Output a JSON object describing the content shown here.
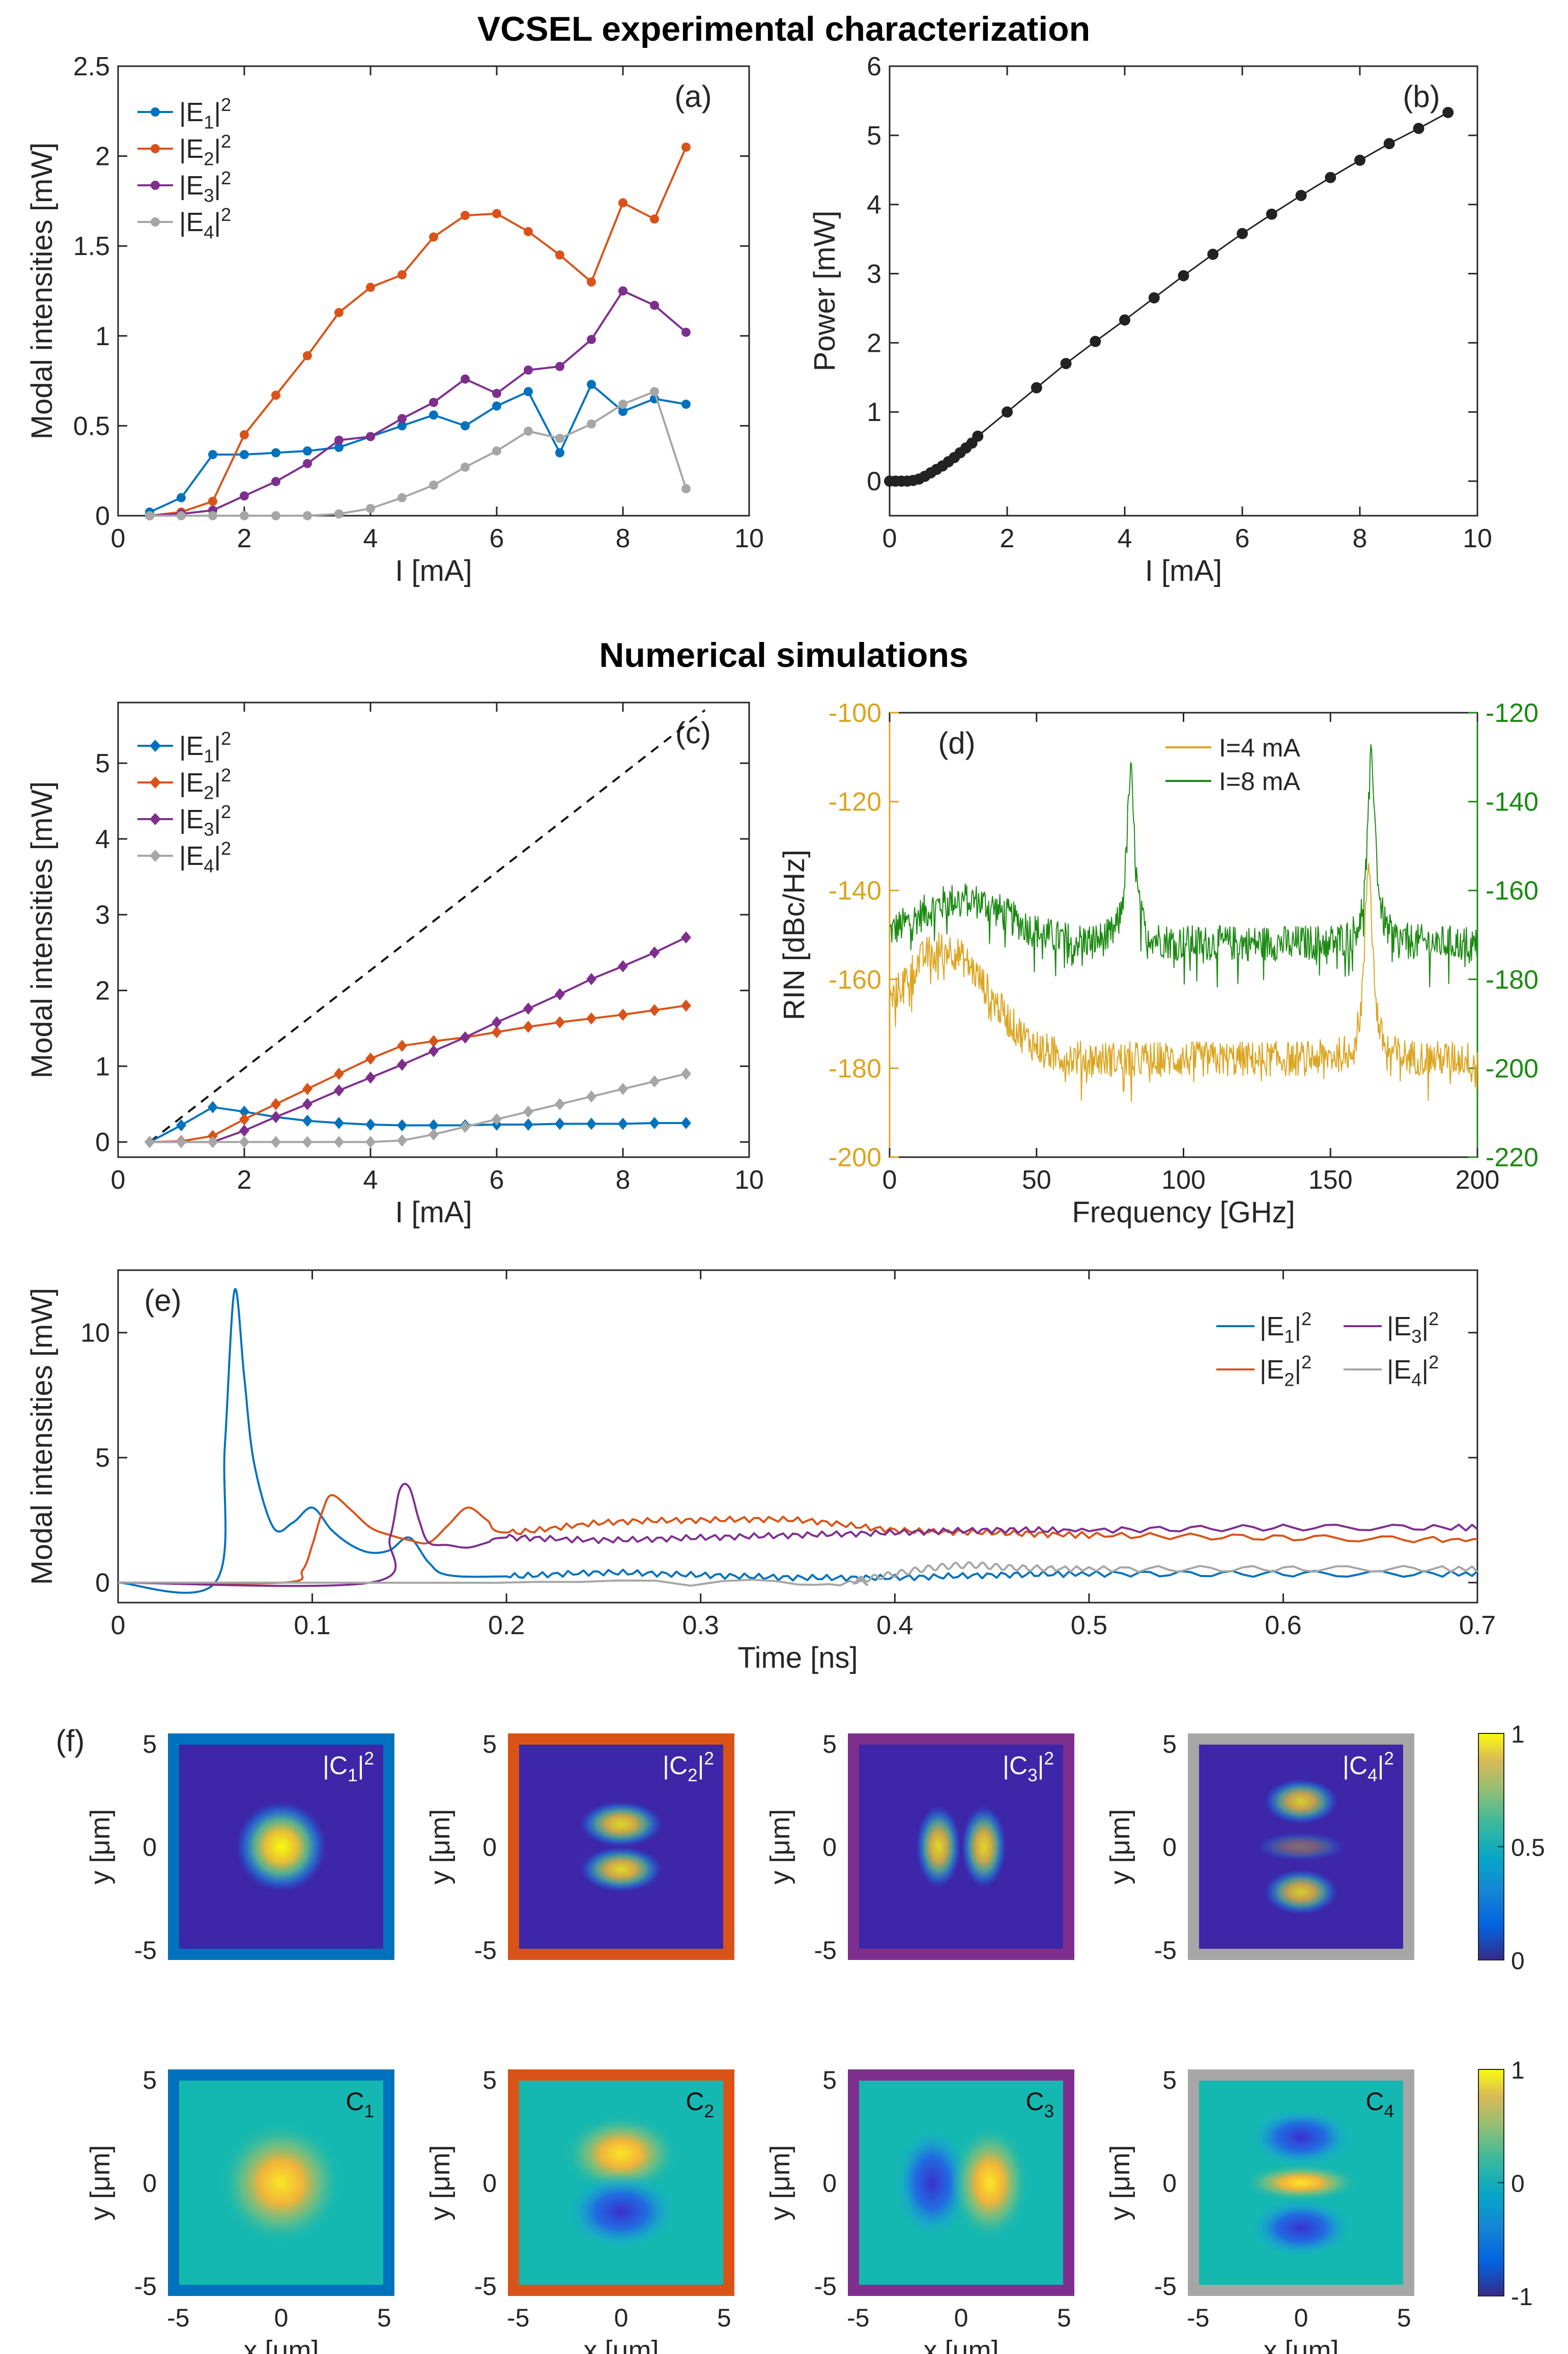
{
  "headings": {
    "experimental": "VCSEL experimental characterization",
    "simulations": "Numerical simulations"
  },
  "colors": {
    "blue": "#0072bd",
    "orange": "#d95319",
    "purple": "#7e2f8e",
    "gray": "#a6a6a6",
    "black": "#222222",
    "gold": "#dba520",
    "green": "#1b8a12"
  },
  "colorbars": [
    {
      "ticks": [
        "1",
        "0.5",
        "0"
      ]
    },
    {
      "ticks": [
        "1",
        "0",
        "-1"
      ]
    }
  ],
  "chart_data": [
    {
      "id": "a",
      "type": "line",
      "panel_label": "(a)",
      "xlabel": "I [mA]",
      "ylabel": "Modal intensities [mW]",
      "xlim": [
        0,
        10
      ],
      "ylim": [
        0,
        2.5
      ],
      "xticks": [
        "0",
        "2",
        "4",
        "6",
        "8",
        "10"
      ],
      "yticks": [
        "0",
        "0.5",
        "1",
        "1.5",
        "2",
        "2.5"
      ],
      "x": [
        0.5,
        1,
        1.5,
        2,
        2.5,
        3,
        3.5,
        4,
        4.5,
        5,
        5.5,
        6,
        6.5,
        7,
        7.5,
        8,
        8.5,
        9
      ],
      "series": [
        {
          "name": "|E1|2",
          "name_base": "|E",
          "name_sub": "1",
          "name_sup": "2",
          "color": "#0072bd",
          "values": [
            0.02,
            0.1,
            0.34,
            0.34,
            0.35,
            0.36,
            0.38,
            0.44,
            0.5,
            0.56,
            0.5,
            0.61,
            0.69,
            0.35,
            0.73,
            0.58,
            0.65,
            0.62
          ]
        },
        {
          "name": "|E2|2",
          "name_base": "|E",
          "name_sub": "2",
          "name_sup": "2",
          "color": "#d95319",
          "values": [
            0.0,
            0.02,
            0.08,
            0.45,
            0.67,
            0.89,
            1.13,
            1.27,
            1.34,
            1.55,
            1.67,
            1.68,
            1.58,
            1.45,
            1.3,
            1.74,
            1.65,
            2.05
          ]
        },
        {
          "name": "|E3|2",
          "name_base": "|E",
          "name_sub": "3",
          "name_sup": "2",
          "color": "#7e2f8e",
          "values": [
            0.0,
            0.01,
            0.03,
            0.11,
            0.19,
            0.29,
            0.42,
            0.44,
            0.54,
            0.63,
            0.76,
            0.68,
            0.81,
            0.83,
            0.98,
            1.25,
            1.17,
            1.02
          ]
        },
        {
          "name": "|E4|2",
          "name_base": "|E",
          "name_sub": "4",
          "name_sup": "2",
          "color": "#a6a6a6",
          "values": [
            0.0,
            0.0,
            0.0,
            0.0,
            0.0,
            0.0,
            0.01,
            0.04,
            0.1,
            0.17,
            0.27,
            0.36,
            0.47,
            0.43,
            0.51,
            0.62,
            0.69,
            0.15
          ]
        }
      ]
    },
    {
      "id": "b",
      "type": "line",
      "panel_label": "(b)",
      "xlabel": "I [mA]",
      "ylabel": "Power [mW]",
      "xlim": [
        0,
        10
      ],
      "ylim": [
        -0.5,
        6
      ],
      "xticks": [
        "0",
        "2",
        "4",
        "6",
        "8",
        "10"
      ],
      "yticks": [
        "0",
        "1",
        "2",
        "3",
        "4",
        "5",
        "6"
      ],
      "x": [
        0,
        0.1,
        0.2,
        0.3,
        0.4,
        0.5,
        0.6,
        0.7,
        0.8,
        0.9,
        1.0,
        1.1,
        1.2,
        1.3,
        1.4,
        1.5,
        2,
        2.5,
        3,
        3.5,
        4,
        4.5,
        5,
        5.5,
        6,
        6.5,
        7,
        7.5,
        8,
        8.5,
        9,
        9.5
      ],
      "series": [
        {
          "name": "Power",
          "color": "#222222",
          "values": [
            0,
            0,
            0,
            0,
            0.01,
            0.03,
            0.07,
            0.12,
            0.17,
            0.22,
            0.28,
            0.34,
            0.41,
            0.48,
            0.55,
            0.65,
            1.0,
            1.35,
            1.7,
            2.02,
            2.33,
            2.65,
            2.97,
            3.28,
            3.58,
            3.86,
            4.13,
            4.39,
            4.64,
            4.88,
            5.1,
            5.33
          ]
        }
      ]
    },
    {
      "id": "c",
      "type": "line",
      "panel_label": "(c)",
      "xlabel": "I [mA]",
      "ylabel": "Modal intensities [mW]",
      "xlim": [
        0,
        10
      ],
      "ylim": [
        -0.2,
        5.8
      ],
      "xticks": [
        "0",
        "2",
        "4",
        "6",
        "8",
        "10"
      ],
      "yticks": [
        "0",
        "1",
        "2",
        "3",
        "4",
        "5"
      ],
      "x": [
        0.5,
        1,
        1.5,
        2,
        2.5,
        3,
        3.5,
        4,
        4.5,
        5,
        5.5,
        6,
        6.5,
        7,
        7.5,
        8,
        8.5,
        9
      ],
      "series": [
        {
          "name": "|E1|2",
          "name_base": "|E",
          "name_sub": "1",
          "name_sup": "2",
          "color": "#0072bd",
          "values": [
            0.0,
            0.22,
            0.46,
            0.4,
            0.33,
            0.28,
            0.25,
            0.23,
            0.22,
            0.22,
            0.22,
            0.23,
            0.23,
            0.24,
            0.24,
            0.24,
            0.25,
            0.25
          ]
        },
        {
          "name": "|E2|2",
          "name_base": "|E",
          "name_sub": "2",
          "name_sup": "2",
          "color": "#d95319",
          "values": [
            0.0,
            0.01,
            0.08,
            0.3,
            0.5,
            0.7,
            0.9,
            1.1,
            1.27,
            1.33,
            1.38,
            1.45,
            1.52,
            1.58,
            1.63,
            1.68,
            1.74,
            1.8
          ]
        },
        {
          "name": "|E3|2",
          "name_base": "|E",
          "name_sub": "3",
          "name_sup": "2",
          "color": "#7e2f8e",
          "values": [
            0.0,
            0.0,
            0.0,
            0.15,
            0.33,
            0.5,
            0.68,
            0.85,
            1.02,
            1.2,
            1.38,
            1.58,
            1.76,
            1.95,
            2.15,
            2.32,
            2.5,
            2.7
          ]
        },
        {
          "name": "|E4|2",
          "name_base": "|E",
          "name_sub": "4",
          "name_sup": "2",
          "color": "#a6a6a6",
          "values": [
            0.0,
            0.0,
            0.0,
            0.0,
            0.0,
            0.0,
            0.0,
            0.0,
            0.02,
            0.1,
            0.2,
            0.3,
            0.4,
            0.5,
            0.6,
            0.7,
            0.8,
            0.9
          ]
        }
      ],
      "reference_line": {
        "style": "dashed",
        "x": [
          0.5,
          9.3
        ],
        "y": [
          0,
          5.7
        ]
      }
    },
    {
      "id": "d",
      "type": "line",
      "panel_label": "(d)",
      "xlabel": "Frequency [GHz]",
      "ylabel": "RIN [dBc/Hz]",
      "xlim": [
        0,
        200
      ],
      "ylim": [
        -200,
        -100
      ],
      "xticks": [
        "0",
        "50",
        "100",
        "150",
        "200"
      ],
      "yticks": [
        "-200",
        "-180",
        "-160",
        "-140",
        "-120",
        "-100"
      ],
      "y2ticks": [
        "-220",
        "-200",
        "-180",
        "-160",
        "-140",
        "-120"
      ],
      "y2lim": [
        -220,
        -120
      ],
      "series": [
        {
          "name": "I=4 mA",
          "color": "#dba520",
          "axis": "left",
          "baseline_dB": -178,
          "bump_dB": -153,
          "bump_GHz": 18,
          "peak_GHz": 163,
          "peak_dB": -133,
          "noise_dB": 4
        },
        {
          "name": "I=8 mA",
          "color": "#1b8a12",
          "axis": "right",
          "baseline_dB": -172,
          "bump_dB": -162,
          "bump_GHz": 25,
          "peak_GHz": 82,
          "peak_dB": -134,
          "peak2_GHz": 164,
          "peak2_dB": -130,
          "noise_dB": 4
        }
      ]
    },
    {
      "id": "e",
      "type": "line",
      "panel_label": "(e)",
      "xlabel": "Time [ns]",
      "ylabel": "Modal intensities [mW]",
      "xlim": [
        0,
        0.7
      ],
      "ylim": [
        -0.8,
        12.5
      ],
      "xticks": [
        "0",
        "0.1",
        "0.2",
        "0.3",
        "0.4",
        "0.5",
        "0.6",
        "0.7"
      ],
      "yticks": [
        "0",
        "5",
        "10"
      ],
      "series": [
        {
          "name": "|E1|2",
          "name_base": "|E",
          "name_sub": "1",
          "name_sup": "2",
          "color": "#0072bd",
          "t": [
            0,
            0.05,
            0.055,
            0.06,
            0.065,
            0.07,
            0.08,
            0.09,
            0.1,
            0.11,
            0.12,
            0.13,
            0.14,
            0.15,
            0.16,
            0.17,
            0.2,
            0.25,
            0.3,
            0.35,
            0.4,
            0.45,
            0.5,
            0.6,
            0.7
          ],
          "values": [
            0,
            0,
            5.5,
            11.7,
            8.2,
            4.8,
            2.2,
            2.4,
            3.0,
            2.1,
            1.5,
            1.2,
            1.3,
            1.8,
            0.8,
            0.3,
            0.25,
            0.4,
            0.3,
            0.2,
            0.2,
            0.3,
            0.35,
            0.35,
            0.35
          ]
        },
        {
          "name": "|E2|2",
          "name_base": "|E",
          "name_sub": "2",
          "name_sup": "2",
          "color": "#d95319",
          "t": [
            0,
            0.085,
            0.095,
            0.1,
            0.105,
            0.11,
            0.12,
            0.13,
            0.14,
            0.15,
            0.16,
            0.17,
            0.18,
            0.19,
            0.2,
            0.25,
            0.3,
            0.35,
            0.4,
            0.45,
            0.5,
            0.6,
            0.7
          ],
          "values": [
            0,
            0,
            0.5,
            1.5,
            2.8,
            3.5,
            2.9,
            2.2,
            1.9,
            1.7,
            1.6,
            2.3,
            3.0,
            2.5,
            2.0,
            2.4,
            2.5,
            2.5,
            2.1,
            2.0,
            1.9,
            1.8,
            1.7
          ]
        },
        {
          "name": "|E3|2",
          "name_base": "|E",
          "name_sub": "3",
          "name_sup": "2",
          "color": "#7e2f8e",
          "t": [
            0,
            0.13,
            0.14,
            0.145,
            0.15,
            0.155,
            0.16,
            0.17,
            0.18,
            0.19,
            0.2,
            0.25,
            0.3,
            0.35,
            0.4,
            0.45,
            0.5,
            0.6,
            0.7
          ],
          "values": [
            0,
            0,
            1.8,
            3.7,
            3.8,
            2.5,
            1.6,
            1.5,
            1.4,
            1.6,
            1.8,
            1.7,
            1.8,
            1.9,
            2.0,
            2.1,
            2.1,
            2.2,
            2.2
          ]
        },
        {
          "name": "|E4|2",
          "name_base": "|E",
          "name_sub": "4",
          "name_sup": "2",
          "color": "#a6a6a6",
          "t": [
            0,
            0.35,
            0.38,
            0.4,
            0.42,
            0.44,
            0.46,
            0.5,
            0.6,
            0.7
          ],
          "values": [
            0,
            0,
            0.1,
            0.35,
            0.6,
            0.7,
            0.6,
            0.55,
            0.55,
            0.55
          ]
        }
      ]
    },
    {
      "id": "f",
      "type": "heatmap",
      "panel_label": "(f)",
      "xlabel": "x [μm]",
      "ylabel": "y [μm]",
      "xlim": [
        -5.5,
        5.5
      ],
      "ylim": [
        -5.5,
        5.5
      ],
      "ticks": [
        "-5",
        "0",
        "5"
      ],
      "maps": [
        {
          "row": "intensity",
          "label_base": "|C",
          "label_sub": "1",
          "label_sup": "2",
          "label_text": "|C1|2",
          "mode": 1,
          "frame_color": "#0072bd"
        },
        {
          "row": "intensity",
          "label_base": "|C",
          "label_sub": "2",
          "label_sup": "2",
          "label_text": "|C2|2",
          "mode": 2,
          "frame_color": "#d95319"
        },
        {
          "row": "intensity",
          "label_base": "|C",
          "label_sub": "3",
          "label_sup": "2",
          "label_text": "|C3|2",
          "mode": 3,
          "frame_color": "#7e2f8e"
        },
        {
          "row": "intensity",
          "label_base": "|C",
          "label_sub": "4",
          "label_sup": "2",
          "label_text": "|C4|2",
          "mode": 4,
          "frame_color": "#a6a6a6"
        },
        {
          "row": "field",
          "label_base": "C",
          "label_sub": "1",
          "label_sup": "",
          "label_text": "C1",
          "mode": 1,
          "frame_color": "#0072bd"
        },
        {
          "row": "field",
          "label_base": "C",
          "label_sub": "2",
          "label_sup": "",
          "label_text": "C2",
          "mode": 2,
          "frame_color": "#d95319"
        },
        {
          "row": "field",
          "label_base": "C",
          "label_sub": "3",
          "label_sup": "",
          "label_text": "C3",
          "mode": 3,
          "frame_color": "#7e2f8e"
        },
        {
          "row": "field",
          "label_base": "C",
          "label_sub": "4",
          "label_sup": "",
          "label_text": "C4",
          "mode": 4,
          "frame_color": "#a6a6a6"
        }
      ]
    }
  ]
}
